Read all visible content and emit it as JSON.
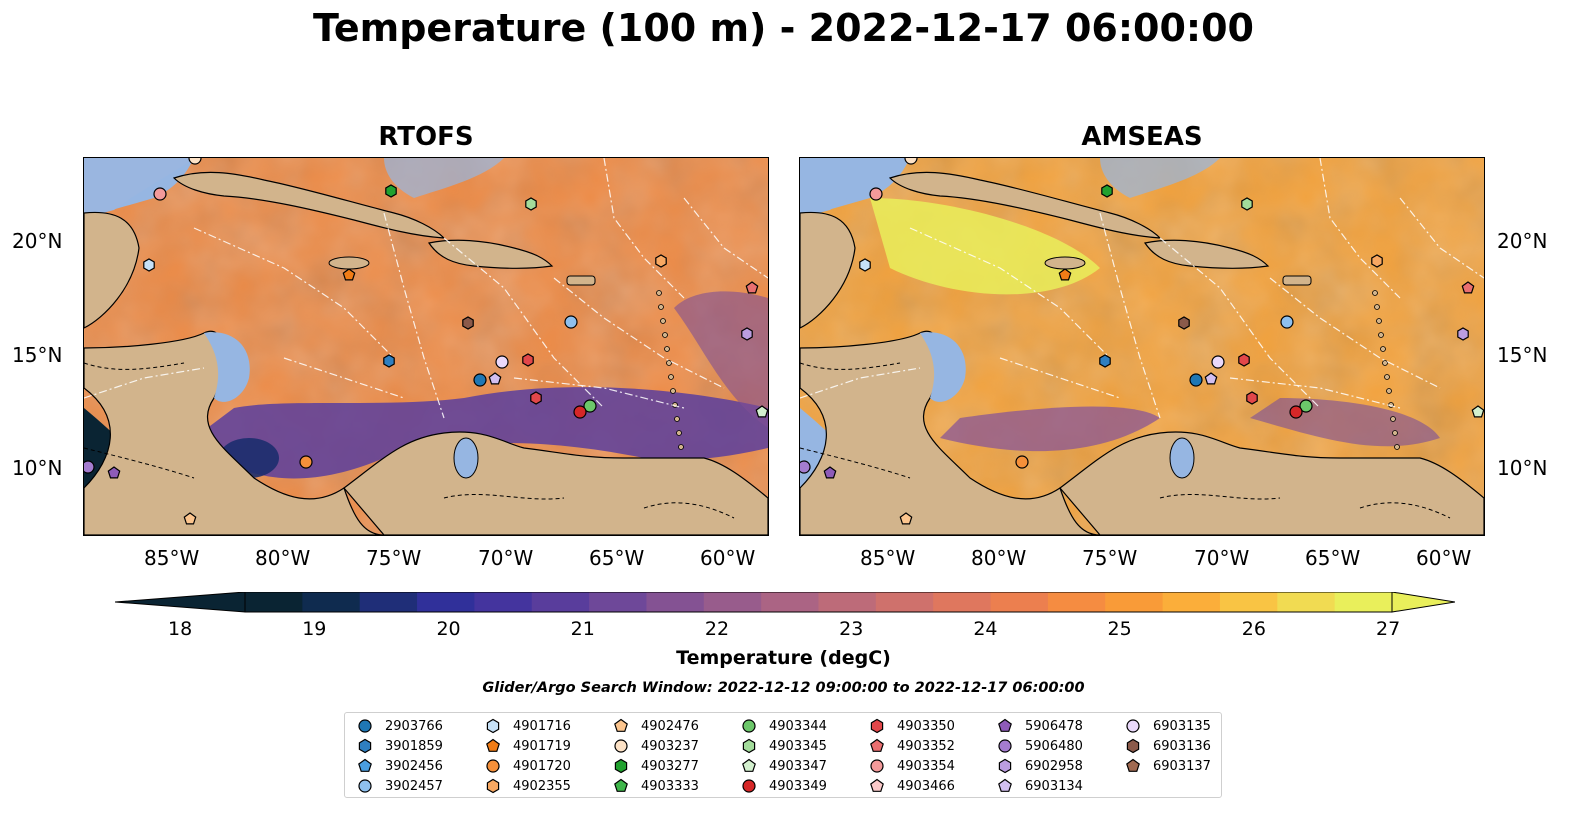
{
  "title": "Temperature (100 m) - 2022-12-17 06:00:00",
  "panels": [
    {
      "title": "RTOFS"
    },
    {
      "title": "AMSEAS"
    }
  ],
  "x_ticks": [
    "85°W",
    "80°W",
    "75°W",
    "70°W",
    "65°W",
    "60°W"
  ],
  "y_ticks": [
    "20°N",
    "15°N",
    "10°N"
  ],
  "colorbar": {
    "ticks": [
      "18",
      "19",
      "20",
      "21",
      "22",
      "23",
      "24",
      "25",
      "26",
      "27"
    ],
    "label": "Temperature (degC)",
    "colors": [
      "#0a2433",
      "#0f2b4f",
      "#1f2e78",
      "#30309a",
      "#44349e",
      "#593d9c",
      "#6e4899",
      "#845293",
      "#985c8c",
      "#ab6484",
      "#bd6b79",
      "#cf716c",
      "#df775e",
      "#ec7f4f",
      "#f58c41",
      "#f99b38",
      "#fbae3a",
      "#f9c444",
      "#f1db52",
      "#e9ef5b"
    ]
  },
  "search_window": "Glider/Argo Search Window: 2022-12-12 09:00:00 to 2022-12-17 06:00:00",
  "legend": [
    {
      "label": "2903766",
      "marker": "circle",
      "color": "#1f77b4"
    },
    {
      "label": "3901859",
      "marker": "hexagon",
      "color": "#2f7fc0"
    },
    {
      "label": "3902456",
      "marker": "pentagon",
      "color": "#4a9ee0"
    },
    {
      "label": "3902457",
      "marker": "circle",
      "color": "#8ec0ee"
    },
    {
      "label": "4901716",
      "marker": "hexagon",
      "color": "#c6e1f7"
    },
    {
      "label": "4901719",
      "marker": "pentagon",
      "color": "#f07c16"
    },
    {
      "label": "4901720",
      "marker": "circle",
      "color": "#f5903a"
    },
    {
      "label": "4902355",
      "marker": "hexagon",
      "color": "#f8a862"
    },
    {
      "label": "4902476",
      "marker": "pentagon",
      "color": "#fcc58e"
    },
    {
      "label": "4903237",
      "marker": "circle",
      "color": "#fde2c6"
    },
    {
      "label": "4903277",
      "marker": "hexagon",
      "color": "#21a12f"
    },
    {
      "label": "4903333",
      "marker": "pentagon",
      "color": "#3fb64b"
    },
    {
      "label": "4903344",
      "marker": "circle",
      "color": "#6cc76a"
    },
    {
      "label": "4903345",
      "marker": "hexagon",
      "color": "#a3dc9b"
    },
    {
      "label": "4903347",
      "marker": "pentagon",
      "color": "#d3f0ce"
    },
    {
      "label": "4903349",
      "marker": "circle",
      "color": "#d62728"
    },
    {
      "label": "4903350",
      "marker": "hexagon",
      "color": "#e2474a"
    },
    {
      "label": "4903352",
      "marker": "pentagon",
      "color": "#ea6f70"
    },
    {
      "label": "4903354",
      "marker": "circle",
      "color": "#f39a9a"
    },
    {
      "label": "4903466",
      "marker": "pentagon",
      "color": "#fbcaca"
    },
    {
      "label": "5906478",
      "marker": "pentagon",
      "color": "#8e5bb8"
    },
    {
      "label": "5906480",
      "marker": "circle",
      "color": "#a47ccf"
    },
    {
      "label": "6902958",
      "marker": "hexagon",
      "color": "#bb9de0"
    },
    {
      "label": "6903134",
      "marker": "pentagon",
      "color": "#d2bff0"
    },
    {
      "label": "6903135",
      "marker": "circle",
      "color": "#ead9fb"
    },
    {
      "label": "6903136",
      "marker": "hexagon",
      "color": "#8b5a4a"
    },
    {
      "label": "6903137",
      "marker": "pentagon",
      "color": "#a06a52"
    }
  ]
}
